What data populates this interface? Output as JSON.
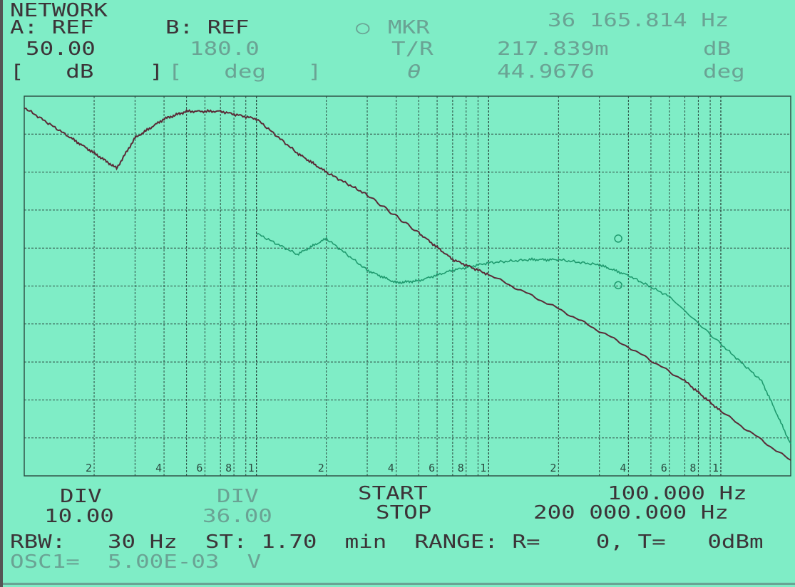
{
  "header": {
    "mode": "NETWORK",
    "a_ref_label": "A: REF",
    "a_ref_value": "50.00",
    "a_unit": "[   dB    ]",
    "b_ref_label": "B: REF",
    "b_ref_value": "180.0",
    "b_unit": "[   deg   ]",
    "mkr_symbol": "○",
    "mkr_label": "MKR",
    "mkr_freq": "36 165.814 Hz",
    "tr_label": "T/R",
    "tr_value": "217.839m",
    "tr_unit": "dB",
    "theta_label": "θ",
    "theta_value": "44.9676",
    "theta_unit": "deg"
  },
  "footer": {
    "a_div_label": "DIV",
    "a_div_value": "10.00",
    "b_div_label": "DIV",
    "b_div_value": "36.00",
    "start_label": "START",
    "stop_label": "STOP",
    "start_value": "100.000 Hz",
    "stop_value": "200 000.000 Hz",
    "rbw_line": "RBW:   30 Hz  ST: 1.70  min  RANGE: R=    0, T=   0dBm",
    "osc_line": "OSC1=  5.00E-03  V"
  },
  "colors": {
    "background": "#7fedc6",
    "grid": "#2b4a40",
    "magnitude_trace": "#5a2a36",
    "phase_trace": "#1f9a6e"
  },
  "chart_data": {
    "type": "line",
    "x_scale": "log",
    "xlim": [
      100,
      200000
    ],
    "x_tick_labels": [
      "2",
      "4",
      "6",
      "8",
      "1",
      "2",
      "4",
      "6",
      "8",
      "1",
      "2",
      "4",
      "6",
      "8",
      "1"
    ],
    "x_tick_values": [
      200,
      400,
      600,
      800,
      1000,
      2000,
      4000,
      6000,
      8000,
      10000,
      20000,
      40000,
      60000,
      80000,
      100000
    ],
    "magnitude": {
      "ref": 50,
      "div": 10,
      "unit": "dB",
      "ylim": [
        -50,
        50
      ],
      "x": [
        100,
        150,
        200,
        250,
        300,
        400,
        500,
        700,
        1000,
        1500,
        2000,
        3000,
        5000,
        7000,
        10000,
        20000,
        40000,
        70000,
        100000,
        200000
      ],
      "y": [
        47,
        40,
        35,
        31,
        39,
        44,
        46,
        46,
        44,
        35,
        30,
        24,
        14,
        7,
        3,
        -6,
        -16,
        -25,
        -33,
        -46
      ]
    },
    "phase": {
      "ref": 180,
      "div": 36,
      "unit": "deg",
      "ylim": [
        -180,
        180
      ],
      "x": [
        1000,
        1500,
        2000,
        3000,
        4000,
        5000,
        7000,
        10000,
        15000,
        20000,
        30000,
        40000,
        60000,
        100000,
        150000,
        200000
      ],
      "y": [
        50,
        30,
        45,
        15,
        3,
        5,
        15,
        22,
        25,
        25,
        20,
        10,
        -10,
        -55,
        -90,
        -150
      ]
    },
    "markers": [
      {
        "x": 36165.814,
        "magnitude_db": 0.217839,
        "phase_deg": 44.9676
      }
    ]
  }
}
